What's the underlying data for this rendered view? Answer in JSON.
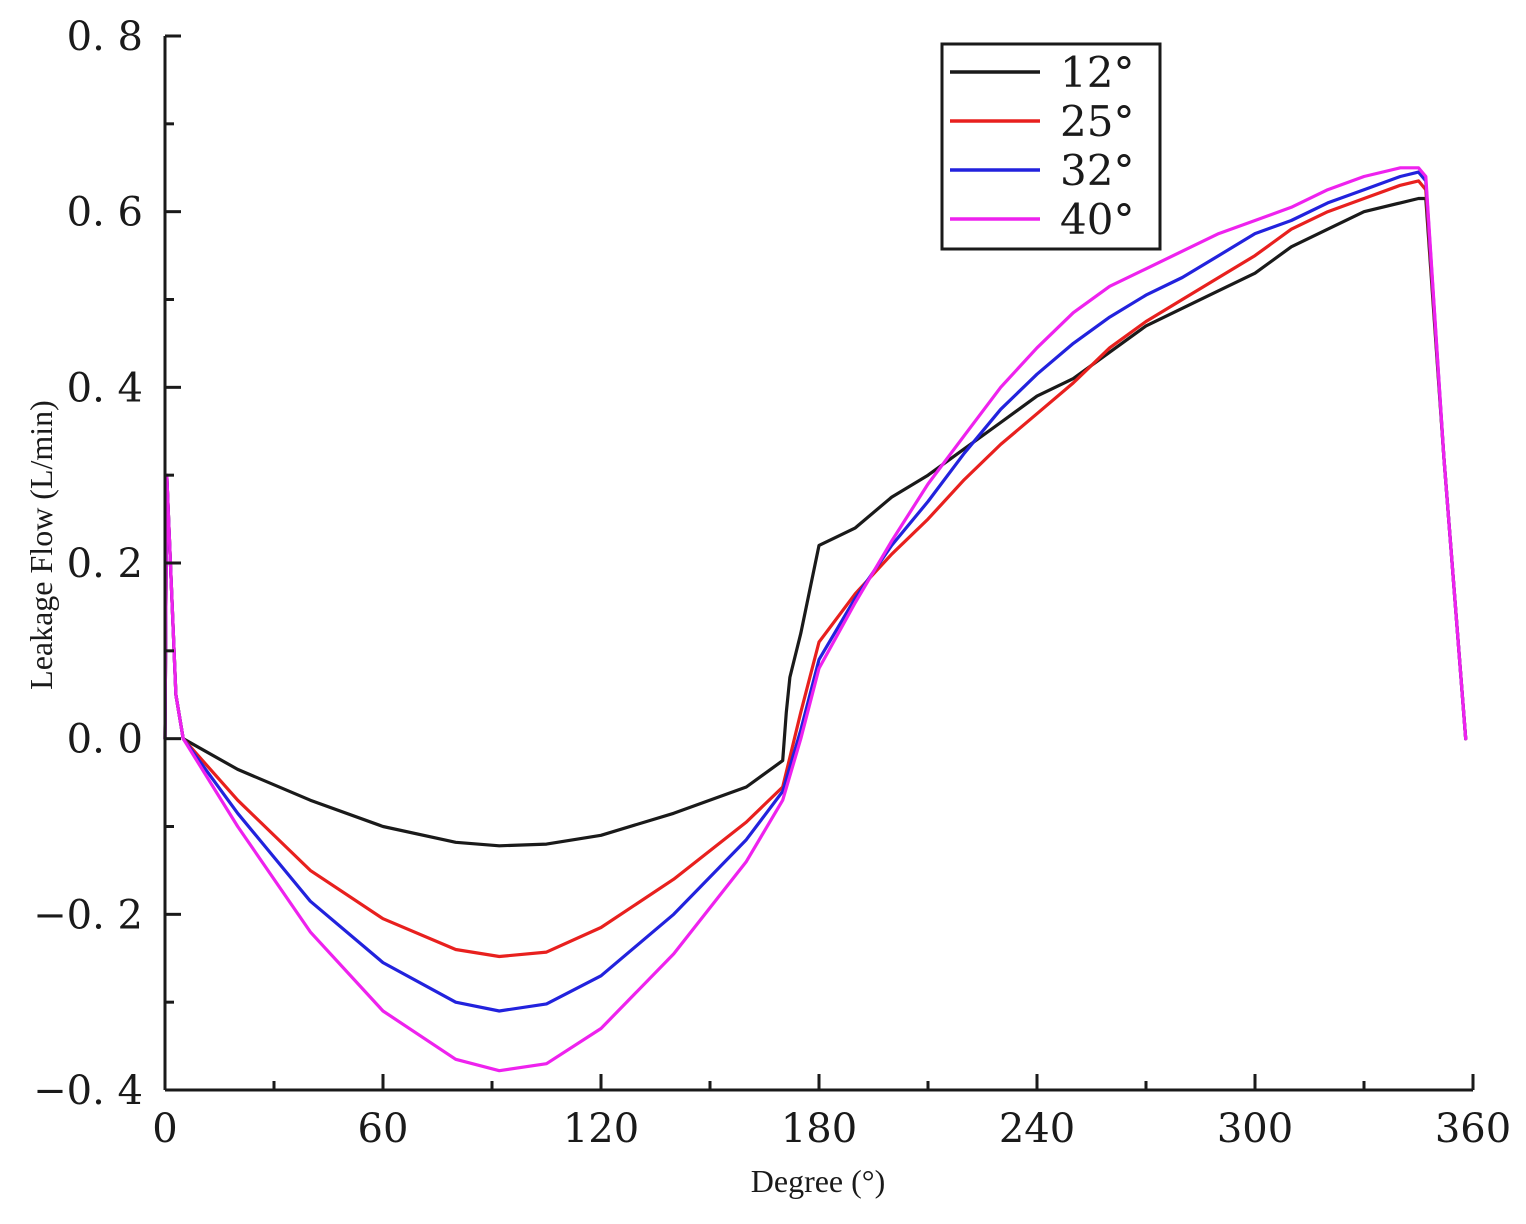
{
  "chart_data": {
    "type": "line",
    "title": "",
    "xlabel": "Degree (°)",
    "ylabel": "Leakage Flow (L/min)",
    "xlim": [
      0,
      360
    ],
    "ylim": [
      -0.4,
      0.8
    ],
    "xticks": [
      0,
      60,
      120,
      180,
      240,
      300,
      360
    ],
    "xtick_labels": [
      "0",
      "60",
      "120",
      "180",
      "240",
      "300",
      "360"
    ],
    "yticks": [
      -0.4,
      -0.2,
      0.0,
      0.2,
      0.4,
      0.6,
      0.8
    ],
    "ytick_labels": [
      "−0. 4",
      "−0. 2",
      "0. 0",
      "0. 2",
      "0. 4",
      "0. 6",
      "0. 8"
    ],
    "grid": false,
    "legend_position": "top-right",
    "series": [
      {
        "name": "12°",
        "color": "#1a1a1a",
        "x": [
          0,
          0.5,
          1,
          3,
          5,
          20,
          40,
          60,
          80,
          92,
          105,
          120,
          140,
          160,
          170,
          171,
          172,
          175,
          180,
          185,
          190,
          200,
          210,
          220,
          230,
          240,
          250,
          260,
          270,
          280,
          290,
          300,
          310,
          320,
          330,
          340,
          345,
          347,
          352,
          358
        ],
        "values": [
          0.0,
          0.3,
          0.25,
          0.05,
          0.0,
          -0.035,
          -0.07,
          -0.1,
          -0.118,
          -0.122,
          -0.12,
          -0.11,
          -0.085,
          -0.055,
          -0.025,
          0.03,
          0.07,
          0.12,
          0.22,
          0.23,
          0.24,
          0.275,
          0.3,
          0.33,
          0.36,
          0.39,
          0.41,
          0.44,
          0.47,
          0.49,
          0.51,
          0.53,
          0.56,
          0.58,
          0.6,
          0.61,
          0.615,
          0.615,
          0.32,
          0.0
        ]
      },
      {
        "name": "25°",
        "color": "#e8201e",
        "x": [
          0,
          0.5,
          1,
          3,
          5,
          20,
          40,
          60,
          80,
          92,
          105,
          120,
          140,
          160,
          170,
          175,
          180,
          190,
          200,
          210,
          220,
          230,
          240,
          250,
          260,
          270,
          280,
          290,
          300,
          310,
          320,
          330,
          340,
          345,
          347,
          352,
          358
        ],
        "values": [
          0.0,
          0.3,
          0.25,
          0.05,
          0.0,
          -0.07,
          -0.15,
          -0.205,
          -0.24,
          -0.248,
          -0.243,
          -0.215,
          -0.16,
          -0.095,
          -0.055,
          0.03,
          0.11,
          0.165,
          0.21,
          0.25,
          0.295,
          0.335,
          0.37,
          0.405,
          0.445,
          0.475,
          0.5,
          0.525,
          0.55,
          0.58,
          0.6,
          0.615,
          0.63,
          0.635,
          0.625,
          0.32,
          0.0
        ]
      },
      {
        "name": "32°",
        "color": "#2222dd",
        "x": [
          0,
          0.5,
          1,
          3,
          5,
          20,
          40,
          60,
          80,
          92,
          105,
          120,
          140,
          160,
          170,
          175,
          180,
          190,
          200,
          210,
          220,
          230,
          240,
          250,
          260,
          270,
          280,
          290,
          300,
          310,
          320,
          330,
          340,
          345,
          347,
          352,
          358
        ],
        "values": [
          0.0,
          0.3,
          0.25,
          0.05,
          0.0,
          -0.085,
          -0.185,
          -0.255,
          -0.3,
          -0.31,
          -0.302,
          -0.27,
          -0.2,
          -0.115,
          -0.06,
          0.01,
          0.09,
          0.16,
          0.22,
          0.27,
          0.325,
          0.375,
          0.415,
          0.45,
          0.48,
          0.505,
          0.525,
          0.55,
          0.575,
          0.59,
          0.61,
          0.625,
          0.64,
          0.645,
          0.635,
          0.32,
          0.0
        ]
      },
      {
        "name": "40°",
        "color": "#ee22ee",
        "x": [
          0,
          0.5,
          1,
          3,
          5,
          20,
          40,
          60,
          80,
          92,
          105,
          120,
          140,
          160,
          170,
          175,
          180,
          190,
          200,
          210,
          220,
          230,
          240,
          250,
          260,
          270,
          280,
          290,
          300,
          310,
          320,
          330,
          340,
          345,
          347,
          352,
          358
        ],
        "values": [
          0.0,
          0.3,
          0.25,
          0.05,
          0.0,
          -0.1,
          -0.22,
          -0.31,
          -0.365,
          -0.378,
          -0.37,
          -0.33,
          -0.245,
          -0.14,
          -0.07,
          0.0,
          0.08,
          0.155,
          0.225,
          0.29,
          0.345,
          0.4,
          0.445,
          0.485,
          0.515,
          0.535,
          0.555,
          0.575,
          0.59,
          0.605,
          0.625,
          0.64,
          0.65,
          0.65,
          0.64,
          0.32,
          0.0
        ]
      }
    ]
  }
}
